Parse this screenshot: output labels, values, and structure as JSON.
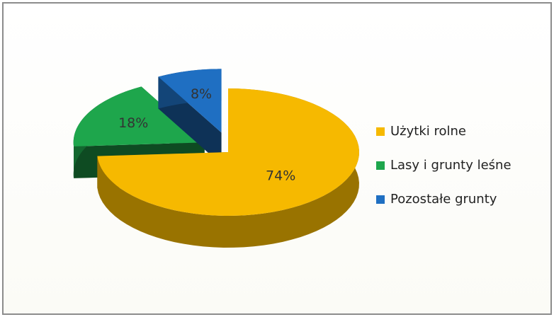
{
  "chart_data": {
    "type": "pie",
    "categories": [
      "Użytki rolne",
      "Lasy i grunty leśne",
      "Pozostałe grunty"
    ],
    "values": [
      74,
      18,
      8
    ],
    "value_labels": [
      "74%",
      "18%",
      "8%"
    ],
    "colors": [
      "#f6b900",
      "#1ea64c",
      "#1f6fc2"
    ],
    "exploded": [
      false,
      true,
      true
    ],
    "legend": "right"
  }
}
